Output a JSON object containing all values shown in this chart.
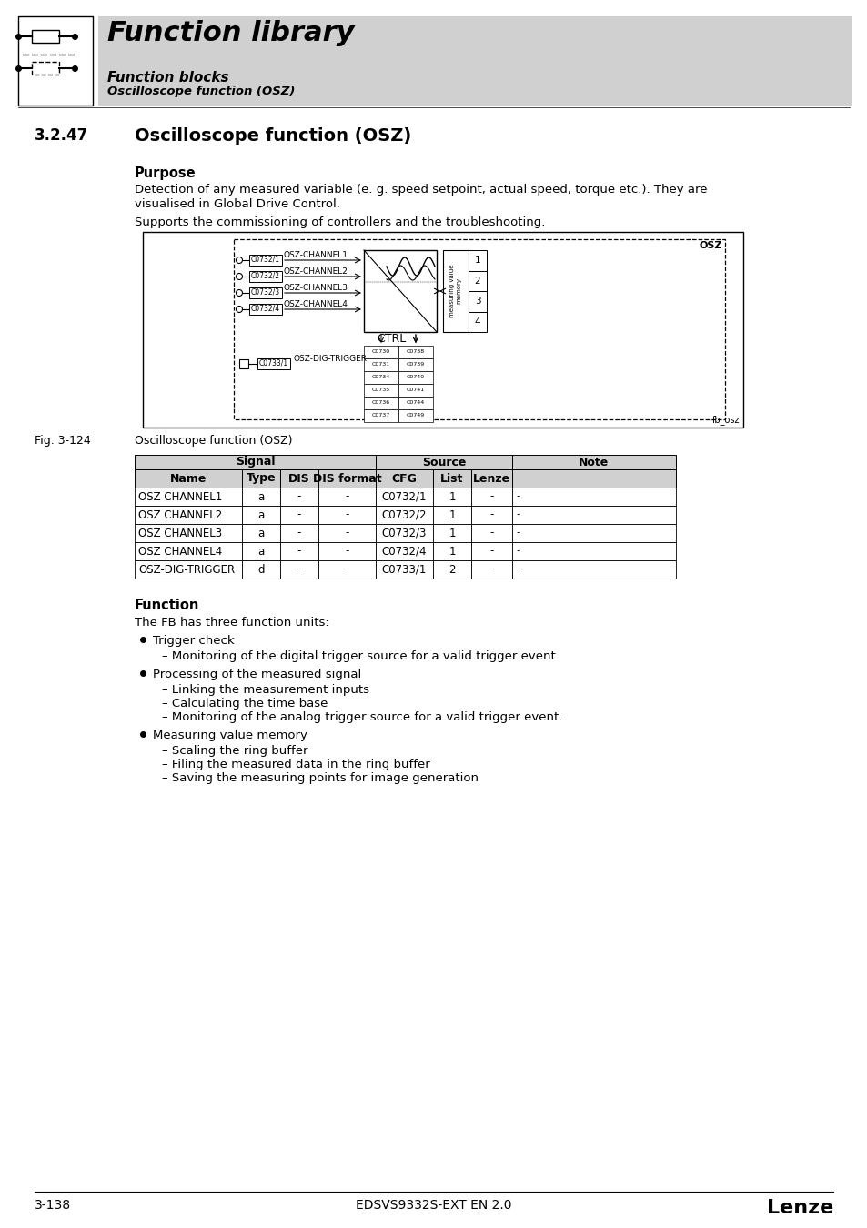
{
  "page_title": "Function library",
  "subtitle1": "Function blocks",
  "subtitle2": "Oscilloscope function (OSZ)",
  "section": "3.2.47",
  "section_title": "Oscilloscope function (OSZ)",
  "purpose_title": "Purpose",
  "purpose_text1": "Detection of any measured variable (e. g. speed setpoint, actual speed, torque etc.). They are",
  "purpose_text2": "visualised in Global Drive Control.",
  "purpose_text3": "Supports the commissioning of controllers and the troubleshooting.",
  "fig_label": "Fig. 3-124",
  "fig_caption": "Oscilloscope function (OSZ)",
  "fig_note": "fb_osz",
  "function_title": "Function",
  "function_text": "The FB has three function units:",
  "bullet1_title": "Trigger check",
  "bullet1_sub": "– Monitoring of the digital trigger source for a valid trigger event",
  "bullet2_title": "Processing of the measured signal",
  "bullet2_sub1": "– Linking the measurement inputs",
  "bullet2_sub2": "– Calculating the time base",
  "bullet2_sub3": "– Monitoring of the analog trigger source for a valid trigger event.",
  "bullet3_title": "Measuring value memory",
  "bullet3_sub1": "– Scaling the ring buffer",
  "bullet3_sub2": "– Filing the measured data in the ring buffer",
  "bullet3_sub3": "– Saving the measuring points for image generation",
  "table_rows": [
    [
      "OSZ CHANNEL1",
      "a",
      "-",
      "-",
      "C0732/1",
      "1",
      "-",
      "-"
    ],
    [
      "OSZ CHANNEL2",
      "a",
      "-",
      "-",
      "C0732/2",
      "1",
      "-",
      "-"
    ],
    [
      "OSZ CHANNEL3",
      "a",
      "-",
      "-",
      "C0732/3",
      "1",
      "-",
      "-"
    ],
    [
      "OSZ CHANNEL4",
      "a",
      "-",
      "-",
      "C0732/4",
      "1",
      "-",
      "-"
    ],
    [
      "OSZ-DIG-TRIGGER",
      "d",
      "-",
      "-",
      "C0733/1",
      "2",
      "-",
      "-"
    ]
  ],
  "param_left_col": [
    "C0730",
    "C0731",
    "C0734",
    "C0735",
    "C0736",
    "C0737"
  ],
  "param_right_col": [
    "C0738",
    "C0739",
    "C0740",
    "C0741",
    "C0744",
    "C0749"
  ],
  "page_number": "3-138",
  "doc_id": "EDSVS9332S-EXT EN 2.0",
  "bg_color": "#ffffff",
  "header_bg": "#d0d0d0",
  "table_header_bg": "#d0d0d0"
}
